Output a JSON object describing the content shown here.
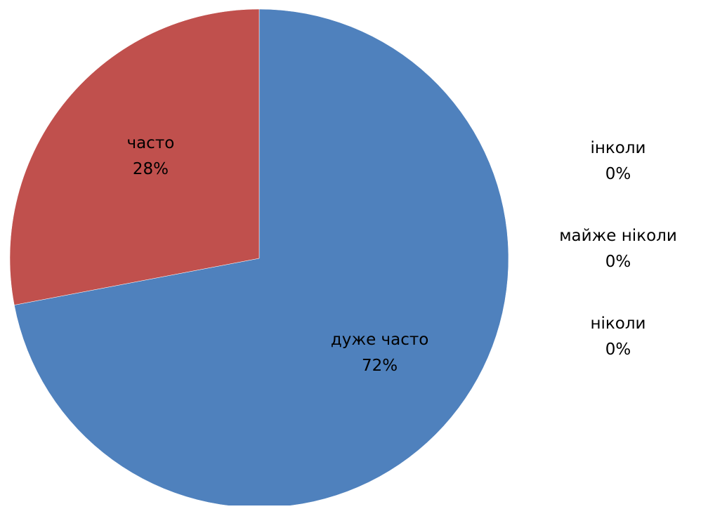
{
  "chart_data": {
    "type": "pie",
    "title": "",
    "legend": "none",
    "slices": [
      {
        "label": "дуже часто",
        "value": 72,
        "value_label": "72%",
        "color": "#4F81BD"
      },
      {
        "label": "часто",
        "value": 28,
        "value_label": "28%",
        "color": "#C0504D"
      },
      {
        "label": "інколи",
        "value": 0,
        "value_label": "0%",
        "color": "#9BBB59"
      },
      {
        "label": "майже ніколи",
        "value": 0,
        "value_label": "0%",
        "color": "#8064A2"
      },
      {
        "label": "ніколи",
        "value": 0,
        "value_label": "0%",
        "color": "#4BACC6"
      }
    ]
  }
}
